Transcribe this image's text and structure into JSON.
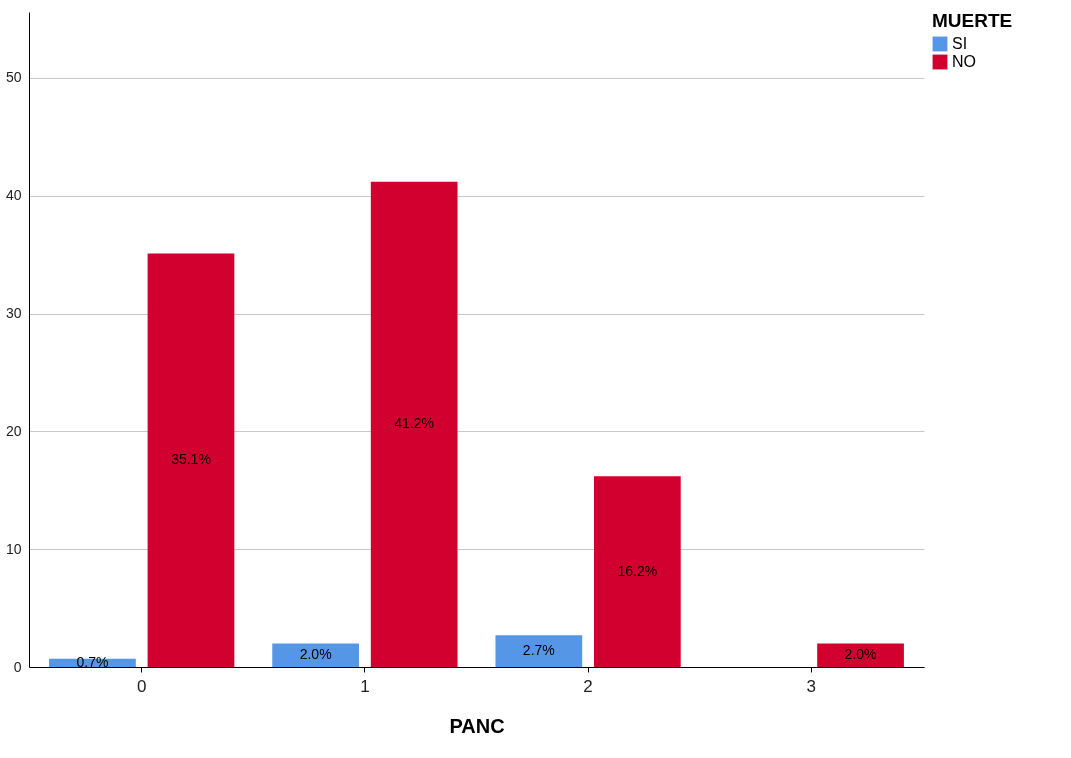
{
  "chart_data": {
    "type": "bar",
    "xlabel": "PANC",
    "legend_title": "MUERTE",
    "categories": [
      "0",
      "1",
      "2",
      "3"
    ],
    "series": [
      {
        "name": "SI",
        "color": "#5596e6",
        "values": [
          0.7,
          2.0,
          2.7,
          null
        ],
        "value_labels": [
          "0.7%",
          "2.0%",
          "2.7%",
          null
        ]
      },
      {
        "name": "NO",
        "color": "#d2002e",
        "values": [
          35.1,
          41.2,
          16.2,
          2.0
        ],
        "value_labels": [
          "35.1%",
          "41.2%",
          "16.2%",
          "2.0%"
        ]
      }
    ],
    "ylim": [
      0,
      55.6
    ],
    "yticks": [
      0,
      10,
      20,
      30,
      40,
      50
    ],
    "grid": "y",
    "legend": "top right"
  }
}
